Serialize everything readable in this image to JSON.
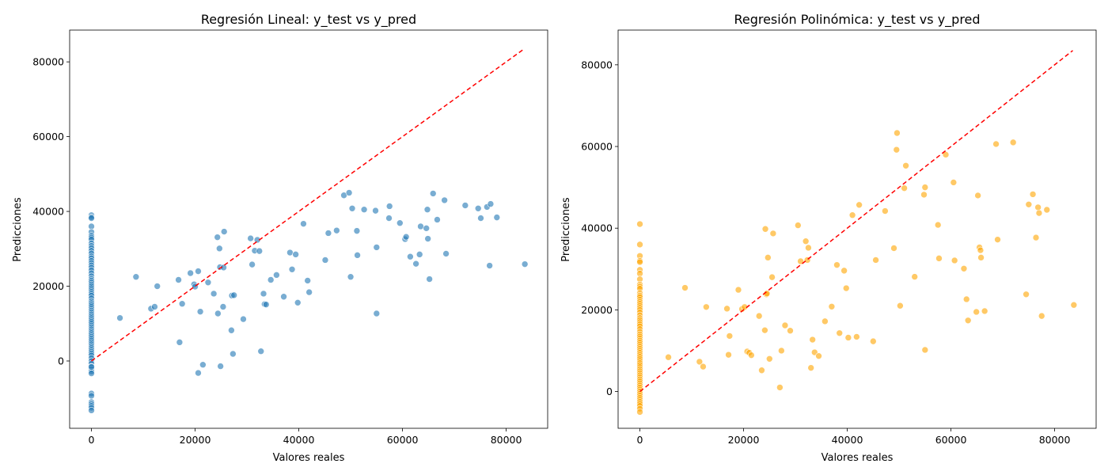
{
  "chart_data": [
    {
      "type": "scatter",
      "title": "Regresión Lineal: y_test vs y_pred",
      "xlabel": "Valores reales",
      "ylabel": "Predicciones",
      "xlim": [
        -4200,
        88000
      ],
      "ylim": [
        -18000,
        88500
      ],
      "xticks": [
        0,
        20000,
        40000,
        60000,
        80000
      ],
      "yticks": [
        0,
        20000,
        40000,
        60000,
        80000
      ],
      "point_color": "#1f77b4",
      "reference_line": {
        "label": "",
        "color": "#ff0000",
        "style": "dashed",
        "from": [
          0,
          0
        ],
        "to": [
          83500,
          83500
        ]
      },
      "series": [
        {
          "x": [
            0,
            0,
            0,
            0,
            0,
            0,
            0,
            0,
            0,
            0,
            0,
            0,
            0,
            0,
            0,
            0,
            0,
            0,
            0,
            0,
            0,
            0,
            0,
            0,
            0,
            0,
            0,
            0,
            0,
            0,
            0,
            0,
            0,
            0,
            0,
            0,
            0,
            0,
            0,
            0,
            0,
            0,
            0,
            0,
            0,
            0,
            0,
            0,
            0,
            0,
            0,
            0,
            0,
            0,
            0,
            0,
            0,
            0,
            0,
            0,
            0,
            0,
            0,
            0,
            0,
            0,
            0,
            0,
            0,
            0,
            0,
            0,
            0,
            0,
            0,
            0,
            0,
            0,
            5500,
            8600,
            11500,
            12200,
            12700,
            16800,
            17000,
            17500,
            19100,
            19800,
            20000,
            20600,
            20600,
            21000,
            21500,
            22500,
            23600,
            24300,
            24400,
            24700,
            24800,
            24900,
            25400,
            25500,
            25600,
            27000,
            27100,
            27300,
            27500,
            29300,
            30700,
            31000,
            31500,
            32000,
            32400,
            32700,
            33200,
            33400,
            33700,
            34600,
            35700,
            37100,
            38300,
            38700,
            39400,
            39800,
            40900,
            41700,
            42000,
            45100,
            45700,
            47300,
            48700,
            49700,
            50000,
            50300,
            51200,
            51300,
            52600,
            54800,
            55000,
            55000,
            57400,
            57500,
            59500,
            60500,
            60700,
            61500,
            62600,
            63300,
            63500,
            64600,
            64800,
            64900,
            65200,
            65900,
            66700,
            68100,
            68400,
            72100,
            74600,
            75100,
            76300,
            76800,
            77000,
            78200,
            83600
          ],
          "y": [
            39000,
            38500,
            38200,
            36000,
            34500,
            33500,
            33000,
            32500,
            31500,
            30800,
            30200,
            29500,
            28800,
            28000,
            27500,
            26800,
            26200,
            25600,
            25000,
            24300,
            23500,
            22700,
            22000,
            21500,
            21000,
            20500,
            20000,
            19500,
            19000,
            18500,
            18000,
            17500,
            16800,
            16000,
            15500,
            15000,
            14500,
            14000,
            13500,
            13000,
            12500,
            12000,
            11500,
            11000,
            10500,
            10000,
            9500,
            9000,
            8500,
            8000,
            7500,
            7000,
            6500,
            6000,
            5500,
            5000,
            4500,
            4000,
            3500,
            3000,
            2500,
            2000,
            1500,
            800,
            0,
            -700,
            -1500,
            -2200,
            -2800,
            -3300,
            -8700,
            -9300,
            -11000,
            -11500,
            -12000,
            -12500,
            -13200,
            -1600,
            11500,
            22500,
            14000,
            14500,
            20000,
            21700,
            5000,
            15300,
            23500,
            20500,
            19900,
            24000,
            -3200,
            13200,
            -1000,
            21000,
            18000,
            33100,
            12700,
            30100,
            25100,
            -1400,
            14500,
            25000,
            34600,
            8200,
            17500,
            1900,
            17600,
            11200,
            32800,
            25800,
            29500,
            32400,
            29400,
            2600,
            18000,
            15200,
            15100,
            21700,
            23000,
            17200,
            29000,
            24500,
            28500,
            15600,
            36700,
            21500,
            18400,
            27000,
            34200,
            34900,
            44300,
            45000,
            22500,
            40800,
            34800,
            28300,
            40500,
            40200,
            12700,
            30400,
            38200,
            41400,
            36900,
            32600,
            33200,
            27900,
            26000,
            28500,
            36000,
            35500,
            40500,
            32700,
            21900,
            44800,
            37800,
            43000,
            28700,
            41600,
            40800,
            38200,
            41200,
            25500,
            42000,
            38400,
            25900
          ]
        }
      ]
    },
    {
      "type": "scatter",
      "title": "Regresión Polinómica: y_test vs y_pred",
      "xlabel": "Valores reales",
      "ylabel": "Predicciones",
      "xlim": [
        -4200,
        88000
      ],
      "ylim": [
        -9000,
        88500
      ],
      "xticks": [
        0,
        20000,
        40000,
        60000,
        80000
      ],
      "yticks": [
        0,
        20000,
        40000,
        60000,
        80000
      ],
      "point_color": "#ffa500",
      "reference_line": {
        "label": "",
        "color": "#ff0000",
        "style": "dashed",
        "from": [
          0,
          0
        ],
        "to": [
          83500,
          83500
        ]
      },
      "series": [
        {
          "x": [
            0,
            0,
            0,
            0,
            0,
            0,
            0,
            0,
            0,
            0,
            0,
            0,
            0,
            0,
            0,
            0,
            0,
            0,
            0,
            0,
            0,
            0,
            0,
            0,
            0,
            0,
            0,
            0,
            0,
            0,
            0,
            0,
            0,
            0,
            0,
            0,
            0,
            0,
            0,
            0,
            0,
            0,
            0,
            0,
            0,
            0,
            0,
            0,
            0,
            0,
            0,
            0,
            0,
            0,
            0,
            0,
            0,
            0,
            0,
            0,
            0,
            0,
            0,
            0,
            0,
            0,
            0,
            5500,
            8700,
            11500,
            12200,
            12800,
            16800,
            17100,
            17300,
            19000,
            19700,
            20200,
            20700,
            21100,
            21500,
            23000,
            23500,
            24100,
            24200,
            24400,
            24500,
            24700,
            25000,
            25500,
            25700,
            27000,
            27300,
            28000,
            29000,
            30500,
            31000,
            32000,
            32300,
            32500,
            33000,
            33300,
            33700,
            34500,
            35700,
            37000,
            38000,
            38500,
            39400,
            39800,
            40200,
            41000,
            41800,
            42300,
            45000,
            45500,
            47300,
            49000,
            49500,
            49600,
            50200,
            51000,
            51300,
            53000,
            54800,
            55000,
            55000,
            57500,
            57700,
            59000,
            60500,
            60700,
            62500,
            63000,
            63300,
            64900,
            65200,
            65500,
            65700,
            65800,
            66500,
            68700,
            69000,
            72000,
            74500,
            75000,
            75800,
            76400,
            76800,
            77000,
            77500,
            78500,
            83700
          ],
          "x_note": "",
          "y": [
            41000,
            36000,
            33200,
            32000,
            31700,
            29800,
            28900,
            27500,
            26200,
            25700,
            25200,
            24100,
            23500,
            23100,
            22500,
            22000,
            21500,
            21000,
            20500,
            20000,
            19400,
            18700,
            18000,
            17500,
            17000,
            16500,
            16000,
            15300,
            14600,
            14000,
            13500,
            13000,
            12500,
            12000,
            11500,
            11000,
            10500,
            10000,
            9500,
            9000,
            8500,
            8000,
            7500,
            7000,
            6500,
            6000,
            5500,
            5000,
            4500,
            4000,
            3500,
            3000,
            2500,
            2000,
            1500,
            1000,
            500,
            0,
            -500,
            -1000,
            -1500,
            -2000,
            -2500,
            -3000,
            -3500,
            -4200,
            -5000,
            8400,
            25400,
            7300,
            6100,
            20700,
            20300,
            9000,
            13600,
            24900,
            20200,
            20700,
            9800,
            9500,
            8900,
            18500,
            5200,
            15000,
            39800,
            23800,
            24000,
            32800,
            8000,
            28000,
            38700,
            1000,
            10000,
            16200,
            14900,
            40700,
            31900,
            36800,
            32200,
            35200,
            5800,
            12700,
            9600,
            8700,
            17200,
            20800,
            31000,
            14300,
            29600,
            25300,
            13200,
            43200,
            13400,
            45700,
            12300,
            32200,
            44200,
            35100,
            59200,
            63300,
            21000,
            49800,
            55300,
            28100,
            48200,
            10200,
            50000,
            40800,
            32600,
            58000,
            51200,
            32100,
            30100,
            22600,
            17400,
            19500,
            48000,
            35300,
            34600,
            32800,
            19700,
            60600,
            37200,
            61000,
            23800,
            45800,
            48300,
            37700,
            45100,
            43700,
            18500,
            44500,
            21200
          ],
          "y_note": ""
        }
      ]
    }
  ]
}
